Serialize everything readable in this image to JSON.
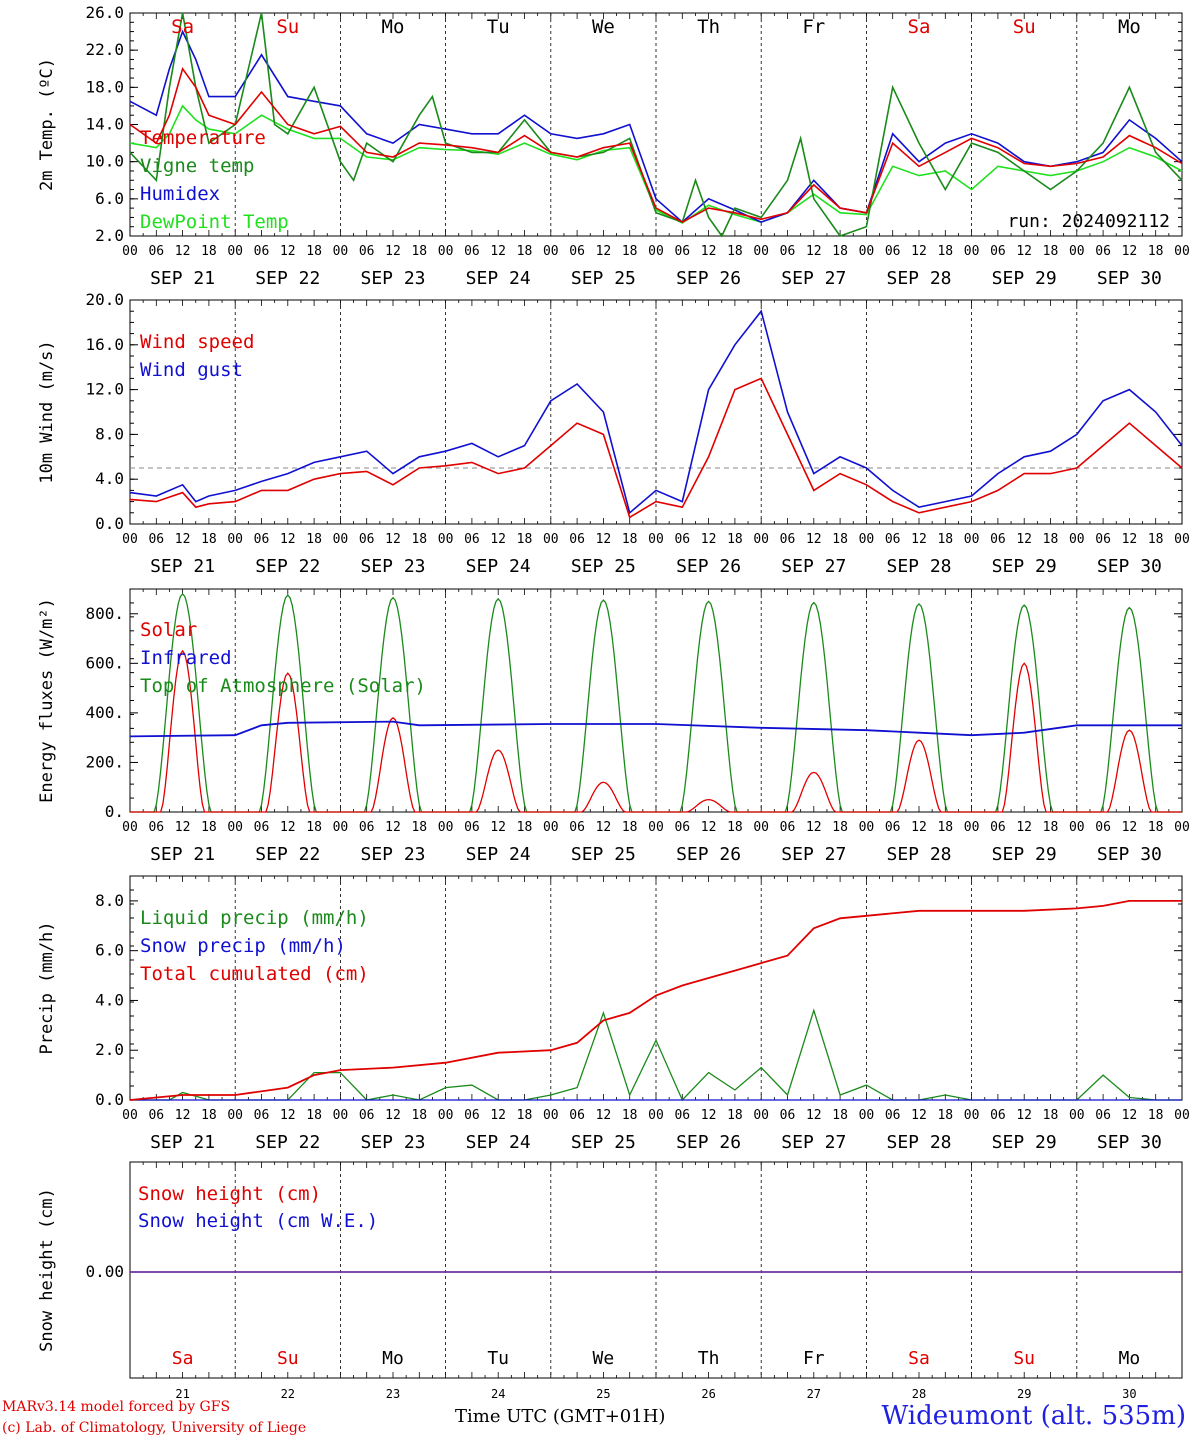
{
  "colors": {
    "red": "#e00000",
    "green": "#1a8a1a",
    "blue": "#1010d0",
    "lightgreen": "#20e020",
    "purple": "#7030a0",
    "grid": "#000000",
    "ref": "#888888"
  },
  "weekdays": [
    "Sa",
    "Su",
    "Mo",
    "Tu",
    "We",
    "Th",
    "Fr",
    "Sa",
    "Su",
    "Mo"
  ],
  "weekday_colors": [
    "red",
    "red",
    "black",
    "black",
    "black",
    "black",
    "black",
    "red",
    "red",
    "black"
  ],
  "date_labels": [
    "SEP 21",
    "SEP 22",
    "SEP 23",
    "SEP 24",
    "SEP 25",
    "SEP 26",
    "SEP 27",
    "SEP 28",
    "SEP 29",
    "SEP 30"
  ],
  "day_numbers": [
    "21",
    "22",
    "23",
    "24",
    "25",
    "26",
    "27",
    "28",
    "29",
    "30"
  ],
  "hour_labels": [
    "00",
    "06",
    "12",
    "18"
  ],
  "footer": {
    "credit1": "MARv3.14 model forced by GFS",
    "credit2": "(c) Lab. of Climatology, University of Liege",
    "xtitle": "Time UTC (GMT+01H)",
    "station": "Wideumont (alt. 535m)"
  },
  "chart_data": [
    {
      "type": "line",
      "ylabel": "2m Temp. (ºC)",
      "ylim": [
        2,
        26
      ],
      "yticks": [
        "2.0",
        "6.0",
        "10.0",
        "14.0",
        "18.0",
        "22.0",
        "26.0"
      ],
      "annotation": "run: 2024092112",
      "x_unit": "hours since SEP 21 00 UTC",
      "series": [
        {
          "name": "Temperature",
          "color": "red",
          "x": [
            0,
            6,
            9,
            12,
            15,
            18,
            24,
            30,
            36,
            42,
            48,
            54,
            60,
            66,
            72,
            78,
            84,
            90,
            96,
            102,
            108,
            114,
            120,
            126,
            132,
            138,
            144,
            150,
            156,
            162,
            168,
            174,
            180,
            186,
            192,
            198,
            204,
            210,
            216,
            222,
            228,
            234,
            240
          ],
          "y": [
            14,
            12,
            15,
            20,
            18,
            15,
            14,
            17.5,
            14,
            13,
            13.8,
            11,
            10.5,
            12,
            11.8,
            11.5,
            11,
            12.8,
            11,
            10.5,
            11.5,
            12,
            5,
            3.5,
            5,
            4.5,
            3.8,
            4.5,
            7.5,
            5,
            4.5,
            12,
            9.5,
            11,
            12.5,
            11.5,
            9.8,
            9.5,
            9.8,
            10.5,
            12.8,
            11.5,
            9.8
          ]
        },
        {
          "name": "Vigne temp",
          "color": "green",
          "x": [
            0,
            6,
            9,
            12,
            15,
            18,
            24,
            30,
            33,
            36,
            42,
            48,
            51,
            54,
            60,
            66,
            69,
            72,
            78,
            84,
            90,
            96,
            102,
            108,
            114,
            120,
            126,
            129,
            132,
            135,
            138,
            144,
            150,
            153,
            156,
            162,
            168,
            174,
            180,
            186,
            192,
            198,
            204,
            210,
            216,
            222,
            228,
            234,
            240
          ],
          "y": [
            11,
            8,
            18,
            26,
            18,
            12,
            14,
            26,
            14,
            13,
            18,
            10,
            8,
            12,
            10,
            15,
            17,
            12,
            11,
            11,
            14.5,
            11,
            10.5,
            11,
            12.5,
            4.5,
            3.5,
            8,
            4,
            1,
            5,
            4,
            8,
            12.5,
            6,
            2,
            3,
            18,
            12,
            7,
            12,
            11,
            9,
            7,
            9,
            12,
            18,
            11,
            8
          ]
        },
        {
          "name": "Humidex",
          "color": "blue",
          "x": [
            0,
            6,
            9,
            12,
            15,
            18,
            24,
            30,
            36,
            42,
            48,
            54,
            60,
            66,
            72,
            78,
            84,
            90,
            96,
            102,
            108,
            114,
            120,
            126,
            132,
            138,
            144,
            150,
            156,
            162,
            168,
            174,
            180,
            186,
            192,
            198,
            204,
            210,
            216,
            222,
            228,
            234,
            240
          ],
          "y": [
            16.5,
            15,
            20,
            24,
            21,
            17,
            17,
            21.5,
            17,
            16.5,
            16,
            13,
            12,
            14,
            13.5,
            13,
            13,
            15,
            13,
            12.5,
            13,
            14,
            6,
            3.5,
            6,
            4.8,
            3.5,
            4.5,
            8,
            5,
            4.5,
            13,
            10,
            12,
            13,
            12,
            10,
            9.5,
            10,
            11,
            14.5,
            12.5,
            10
          ]
        },
        {
          "name": "DewPoint Temp",
          "color": "lightgreen",
          "x": [
            0,
            6,
            9,
            12,
            15,
            18,
            24,
            30,
            36,
            42,
            48,
            54,
            60,
            66,
            72,
            78,
            84,
            90,
            96,
            102,
            108,
            114,
            120,
            126,
            132,
            138,
            144,
            150,
            156,
            162,
            168,
            174,
            180,
            186,
            192,
            198,
            204,
            210,
            216,
            222,
            228,
            234,
            240
          ],
          "y": [
            12,
            11.5,
            13,
            16,
            14.5,
            13.5,
            13,
            15,
            13.5,
            12.5,
            12.5,
            10.5,
            10.2,
            11.5,
            11.3,
            11.2,
            10.8,
            12,
            10.8,
            10.2,
            11.2,
            11.5,
            4.8,
            3.4,
            5.3,
            4.3,
            3.5,
            4.5,
            6.5,
            4.5,
            4.3,
            9.5,
            8.5,
            9,
            7,
            9.5,
            9,
            8.5,
            9,
            10,
            11.5,
            10.5,
            9
          ]
        }
      ],
      "legend": [
        "Temperature",
        "Vigne temp",
        "Humidex",
        "DewPoint Temp"
      ]
    },
    {
      "type": "line",
      "ylabel": "10m Wind (m/s)",
      "ylim": [
        0,
        20
      ],
      "yticks": [
        "0.0",
        "4.0",
        "8.0",
        "12.0",
        "16.0",
        "20.0"
      ],
      "reference_line": 5,
      "series": [
        {
          "name": "Wind speed",
          "color": "red",
          "x": [
            0,
            6,
            12,
            15,
            18,
            24,
            30,
            36,
            42,
            48,
            54,
            60,
            66,
            72,
            78,
            84,
            90,
            96,
            102,
            108,
            114,
            120,
            126,
            132,
            138,
            144,
            150,
            156,
            162,
            168,
            174,
            180,
            186,
            192,
            198,
            204,
            210,
            216,
            222,
            228,
            234,
            240
          ],
          "y": [
            2.2,
            2,
            2.8,
            1.5,
            1.8,
            2,
            3,
            3,
            4,
            4.5,
            4.7,
            3.5,
            5,
            5.2,
            5.5,
            4.5,
            5,
            7,
            9,
            8,
            0.6,
            2,
            1.5,
            6,
            12,
            13,
            8,
            3,
            4.5,
            3.5,
            2,
            1,
            1.5,
            2,
            3,
            4.5,
            4.5,
            5,
            7,
            9,
            7,
            5
          ]
        },
        {
          "name": "Wind gust",
          "color": "blue",
          "x": [
            0,
            6,
            12,
            15,
            18,
            24,
            30,
            36,
            42,
            48,
            54,
            60,
            66,
            72,
            78,
            84,
            90,
            96,
            102,
            108,
            114,
            120,
            126,
            132,
            138,
            144,
            150,
            156,
            162,
            168,
            174,
            180,
            186,
            192,
            198,
            204,
            210,
            216,
            222,
            228,
            234,
            240
          ],
          "y": [
            2.8,
            2.5,
            3.5,
            2,
            2.5,
            3,
            3.8,
            4.5,
            5.5,
            6,
            6.5,
            4.5,
            6,
            6.5,
            7.2,
            6,
            7,
            11,
            12.5,
            10,
            1,
            3,
            2,
            12,
            16,
            19,
            10,
            4.5,
            6,
            5,
            3,
            1.5,
            2,
            2.5,
            4.5,
            6,
            6.5,
            8,
            11,
            12,
            10,
            7
          ]
        }
      ],
      "legend": [
        "Wind speed",
        "Wind gust"
      ]
    },
    {
      "type": "line",
      "ylabel": "Energy fluxes (W/m²)",
      "ylim": [
        0,
        900
      ],
      "yticks": [
        "0.",
        "200.",
        "400.",
        "600.",
        "800."
      ],
      "series": [
        {
          "name": "Solar",
          "color": "red",
          "daily_peak": [
            650,
            560,
            380,
            250,
            120,
            50,
            160,
            290,
            600,
            330
          ]
        },
        {
          "name": "Infrared",
          "color": "blue",
          "x": [
            0,
            24,
            30,
            36,
            60,
            66,
            96,
            120,
            144,
            168,
            180,
            192,
            204,
            216,
            240
          ],
          "y": [
            305,
            310,
            350,
            360,
            365,
            350,
            355,
            355,
            340,
            330,
            320,
            310,
            320,
            350,
            350
          ]
        },
        {
          "name": "Top of Atmosphere (Solar)",
          "color": "green",
          "daily_peak": [
            880,
            875,
            865,
            860,
            855,
            850,
            845,
            840,
            835,
            825
          ]
        }
      ],
      "legend": [
        "Solar",
        "Infrared",
        "Top of Atmosphere (Solar)"
      ]
    },
    {
      "type": "line",
      "ylabel": "Precip (mm/h)",
      "ylim": [
        0,
        9
      ],
      "yticks": [
        "0.0",
        "2.0",
        "4.0",
        "6.0",
        "8.0"
      ],
      "series": [
        {
          "name": "Liquid precip (mm/h)",
          "color": "green",
          "x": [
            0,
            9,
            12,
            18,
            24,
            30,
            36,
            42,
            48,
            54,
            60,
            66,
            72,
            78,
            84,
            90,
            96,
            102,
            108,
            114,
            120,
            126,
            132,
            138,
            144,
            150,
            156,
            162,
            168,
            174,
            180,
            186,
            192,
            198,
            204,
            210,
            216,
            222,
            228,
            234,
            240
          ],
          "y": [
            0,
            0,
            0.3,
            0,
            0,
            0,
            0,
            1.1,
            1.1,
            0,
            0.2,
            0,
            0.5,
            0.6,
            0,
            0,
            0.2,
            0.5,
            3.5,
            0.2,
            2.4,
            0,
            1.1,
            0.4,
            1.3,
            0.2,
            3.6,
            0.2,
            0.6,
            0,
            0,
            0.2,
            0,
            0,
            0,
            0,
            0,
            1,
            0.1,
            0,
            0
          ]
        },
        {
          "name": "Snow precip (mm/h)",
          "color": "blue",
          "x": [
            0,
            240
          ],
          "y": [
            0,
            0
          ]
        },
        {
          "name": "Total cumulated (cm)",
          "color": "red",
          "x": [
            0,
            12,
            24,
            36,
            42,
            48,
            60,
            72,
            84,
            96,
            102,
            108,
            114,
            120,
            126,
            132,
            138,
            144,
            150,
            156,
            162,
            168,
            180,
            192,
            204,
            216,
            222,
            228,
            240
          ],
          "y": [
            0,
            0.2,
            0.2,
            0.5,
            1,
            1.2,
            1.3,
            1.5,
            1.9,
            2,
            2.3,
            3.2,
            3.5,
            4.2,
            4.6,
            4.9,
            5.2,
            5.5,
            5.8,
            6.9,
            7.3,
            7.4,
            7.6,
            7.6,
            7.6,
            7.7,
            7.8,
            8.0,
            8.0
          ]
        }
      ],
      "legend": [
        "Liquid precip (mm/h)",
        "Snow precip (mm/h)",
        "Total cumulated (cm)"
      ]
    },
    {
      "type": "line",
      "ylabel": "Snow height (cm)",
      "yticks": [
        "0.00"
      ],
      "series": [
        {
          "name": "Snow height (cm)",
          "color": "red",
          "x": [
            0,
            240
          ],
          "y": [
            0,
            0
          ]
        },
        {
          "name": "Snow height (cm W.E.)",
          "color": "blue",
          "x": [
            0,
            240
          ],
          "y": [
            0,
            0
          ]
        }
      ],
      "legend": [
        "Snow height (cm)",
        "Snow height (cm W.E.)"
      ]
    }
  ]
}
